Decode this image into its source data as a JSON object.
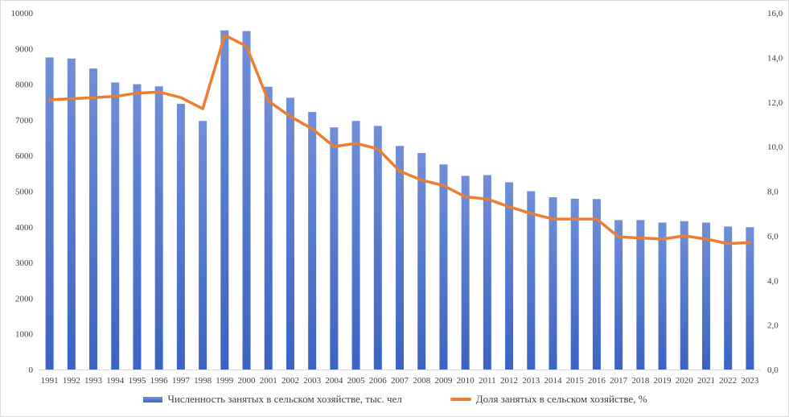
{
  "chart_data": {
    "type": "bar",
    "categories": [
      "1991",
      "1992",
      "1993",
      "1994",
      "1995",
      "1996",
      "1997",
      "1998",
      "1999",
      "2000",
      "2001",
      "2002",
      "2003",
      "2004",
      "2005",
      "2006",
      "2007",
      "2008",
      "2009",
      "2010",
      "2011",
      "2012",
      "2013",
      "2014",
      "2015",
      "2016",
      "2017",
      "2018",
      "2019",
      "2020",
      "2021",
      "2022",
      "2023"
    ],
    "series": [
      {
        "name": "Численность занятых в сельском хозяйстве, тыс. чел",
        "type": "bar",
        "axis": "left",
        "color": "#4472c4",
        "values": [
          8750,
          8720,
          8440,
          8050,
          8000,
          7940,
          7450,
          6970,
          9510,
          9490,
          7930,
          7620,
          7220,
          6790,
          6970,
          6830,
          6270,
          6070,
          5750,
          5430,
          5450,
          5250,
          5000,
          4830,
          4790,
          4780,
          4190,
          4190,
          4120,
          4160,
          4120,
          4010,
          3990
        ]
      },
      {
        "name": "Доля занятых в сельском хозяйстве, %",
        "type": "line",
        "axis": "right",
        "color": "#ed7d31",
        "values": [
          12.1,
          12.15,
          12.2,
          12.25,
          12.4,
          12.45,
          12.2,
          11.7,
          15.0,
          14.5,
          12.05,
          11.35,
          10.8,
          10.0,
          10.15,
          9.9,
          8.9,
          8.5,
          8.25,
          7.75,
          7.65,
          7.3,
          7.0,
          6.75,
          6.75,
          6.75,
          5.95,
          5.9,
          5.85,
          6.0,
          5.85,
          5.65,
          5.7
        ]
      }
    ],
    "left_axis": {
      "min": 0,
      "max": 10000,
      "ticks": [
        "0",
        "1000",
        "2000",
        "3000",
        "4000",
        "5000",
        "6000",
        "7000",
        "8000",
        "9000",
        "10000"
      ]
    },
    "right_axis": {
      "min": 0,
      "max": 16,
      "ticks": [
        "0,0",
        "2,0",
        "4,0",
        "6,0",
        "8,0",
        "10,0",
        "12,0",
        "14,0",
        "16,0"
      ]
    },
    "grid": false,
    "legend_position": "bottom"
  }
}
